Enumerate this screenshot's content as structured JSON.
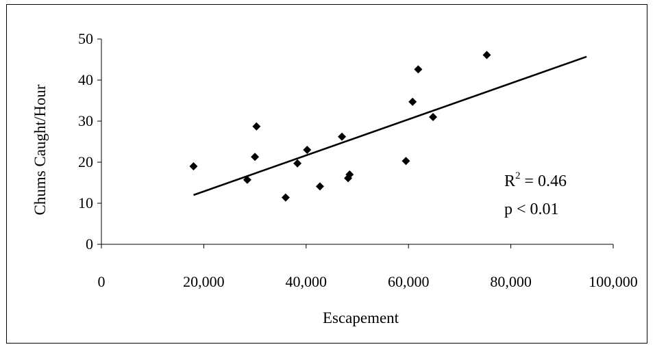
{
  "chart_data": {
    "type": "scatter",
    "xlabel": "Escapement",
    "ylabel": "Chums Caught/Hour",
    "xlim": [
      0,
      100000
    ],
    "ylim": [
      0,
      50
    ],
    "x_ticks": [
      0,
      20000,
      40000,
      60000,
      80000,
      100000
    ],
    "x_tick_labels": [
      "0",
      "20,000",
      "40,000",
      "60,000",
      "80,000",
      "100,000"
    ],
    "y_ticks": [
      0,
      10,
      20,
      30,
      40,
      50
    ],
    "y_tick_labels": [
      "0",
      "10",
      "20",
      "30",
      "40",
      "50"
    ],
    "grid": false,
    "points": [
      {
        "x": 18000,
        "y": 19.0
      },
      {
        "x": 28500,
        "y": 15.7
      },
      {
        "x": 30000,
        "y": 21.3
      },
      {
        "x": 30300,
        "y": 28.7
      },
      {
        "x": 36000,
        "y": 11.4
      },
      {
        "x": 38300,
        "y": 19.7
      },
      {
        "x": 40200,
        "y": 23.0
      },
      {
        "x": 42700,
        "y": 14.1
      },
      {
        "x": 47000,
        "y": 26.2
      },
      {
        "x": 48200,
        "y": 16.1
      },
      {
        "x": 48500,
        "y": 17.0
      },
      {
        "x": 59500,
        "y": 20.3
      },
      {
        "x": 60800,
        "y": 34.7
      },
      {
        "x": 61900,
        "y": 42.6
      },
      {
        "x": 64800,
        "y": 31.0
      },
      {
        "x": 75300,
        "y": 46.1
      }
    ],
    "trendline": {
      "x": [
        18000,
        94800
      ],
      "y": [
        12.0,
        45.7
      ]
    },
    "annotations": {
      "r2_prefix": "R",
      "r2_exponent": "2",
      "r2_value": " = 0.46",
      "p_text": "p < 0.01"
    },
    "marker_color": "#000000",
    "line_color": "#000000"
  }
}
